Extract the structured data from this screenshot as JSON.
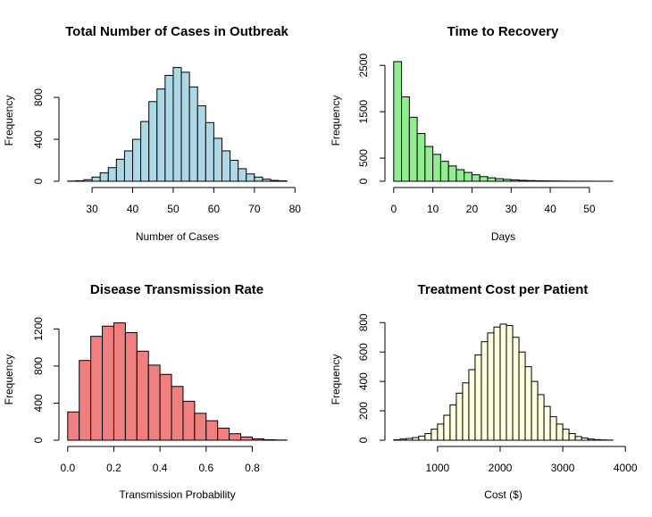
{
  "chart_data": [
    {
      "type": "bar",
      "title": "Total Number of Cases in Outbreak",
      "xlabel": "Number of Cases",
      "ylabel": "Frequency",
      "fill_color": "#ADD8E6",
      "bin_edges": [
        24,
        26,
        28,
        30,
        32,
        34,
        36,
        38,
        40,
        42,
        44,
        46,
        48,
        50,
        52,
        54,
        56,
        58,
        60,
        62,
        64,
        66,
        68,
        70,
        72,
        74,
        76,
        78
      ],
      "values": [
        2,
        5,
        15,
        40,
        80,
        130,
        210,
        290,
        400,
        570,
        760,
        880,
        1010,
        1085,
        1040,
        900,
        720,
        560,
        410,
        290,
        200,
        120,
        70,
        40,
        20,
        8,
        4
      ],
      "xlim": [
        24,
        78
      ],
      "ylim": [
        0,
        1150
      ],
      "x_ticks": [
        30,
        40,
        50,
        60,
        70,
        80
      ],
      "y_ticks": [
        0,
        400,
        800
      ]
    },
    {
      "type": "bar",
      "title": "Time to Recovery",
      "xlabel": "Days",
      "ylabel": "Frequency",
      "fill_color": "#90EE90",
      "bin_edges": [
        0,
        2,
        4,
        6,
        8,
        10,
        12,
        14,
        16,
        18,
        20,
        22,
        24,
        26,
        28,
        30,
        32,
        34,
        36,
        38,
        40,
        42,
        44,
        46,
        48,
        50,
        52,
        54,
        56
      ],
      "values": [
        2580,
        1820,
        1380,
        1030,
        750,
        580,
        430,
        330,
        250,
        190,
        140,
        100,
        75,
        55,
        40,
        30,
        20,
        15,
        10,
        8,
        6,
        4,
        3,
        2,
        2,
        1,
        1,
        1
      ],
      "xlim": [
        0,
        56
      ],
      "ylim": [
        0,
        2600
      ],
      "x_ticks": [
        0,
        10,
        20,
        30,
        40,
        50
      ],
      "y_ticks": [
        0,
        500,
        1500,
        2500
      ]
    },
    {
      "type": "bar",
      "title": "Disease Transmission Rate",
      "xlabel": "Transmission Probability",
      "ylabel": "Frequency",
      "fill_color": "#F08080",
      "bin_edges": [
        0,
        0.05,
        0.1,
        0.15,
        0.2,
        0.25,
        0.3,
        0.35,
        0.4,
        0.45,
        0.5,
        0.55,
        0.6,
        0.65,
        0.7,
        0.75,
        0.8,
        0.85,
        0.9,
        0.95
      ],
      "values": [
        305,
        860,
        1120,
        1230,
        1265,
        1160,
        960,
        810,
        710,
        580,
        420,
        290,
        210,
        130,
        70,
        35,
        15,
        5,
        2
      ],
      "xlim": [
        0,
        0.95
      ],
      "ylim": [
        0,
        1300
      ],
      "x_ticks": [
        0.0,
        0.2,
        0.4,
        0.6,
        0.8
      ],
      "x_tick_labels": [
        "0.0",
        "0.2",
        "0.4",
        "0.6",
        "0.8"
      ],
      "y_ticks": [
        0,
        400,
        800,
        1200
      ]
    },
    {
      "type": "bar",
      "title": "Treatment Cost per Patient",
      "xlabel": "Cost ($)",
      "ylabel": "Frequency",
      "fill_color": "#FFFFE0",
      "bin_edges": [
        300,
        400,
        500,
        600,
        700,
        800,
        900,
        1000,
        1100,
        1200,
        1300,
        1400,
        1500,
        1600,
        1700,
        1800,
        1900,
        2000,
        2100,
        2200,
        2300,
        2400,
        2500,
        2600,
        2700,
        2800,
        2900,
        3000,
        3100,
        3200,
        3300,
        3400,
        3500,
        3600,
        3700,
        3800
      ],
      "values": [
        3,
        8,
        12,
        18,
        28,
        45,
        75,
        110,
        170,
        240,
        320,
        390,
        480,
        580,
        670,
        730,
        770,
        790,
        780,
        700,
        600,
        500,
        400,
        310,
        230,
        160,
        110,
        75,
        45,
        25,
        15,
        8,
        4,
        2,
        1
      ],
      "xlim": [
        300,
        3800
      ],
      "ylim": [
        0,
        820
      ],
      "x_ticks": [
        1000,
        2000,
        3000,
        4000
      ],
      "y_ticks": [
        0,
        200,
        400,
        600,
        800
      ]
    }
  ]
}
